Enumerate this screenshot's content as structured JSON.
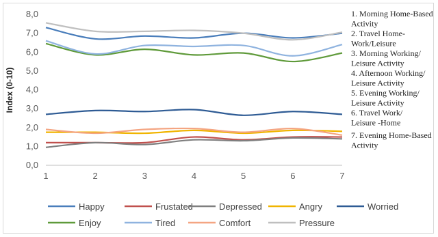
{
  "chart_data": {
    "type": "line",
    "ylabel": "Index (0-10)",
    "xlabel": "",
    "x": [
      1,
      2,
      3,
      4,
      5,
      6,
      7
    ],
    "ylim": [
      0,
      8
    ],
    "yticks": [
      "0,0",
      "1,0",
      "2,0",
      "3,0",
      "4,0",
      "5,0",
      "6,0",
      "7,0",
      "8,0"
    ],
    "xticks": [
      "1",
      "2",
      "3",
      "4",
      "5",
      "6",
      "7"
    ],
    "grid": false,
    "legend_position": "bottom",
    "series": [
      {
        "name": "Happy",
        "color": "#4a7ebb",
        "values": [
          7.3,
          6.7,
          6.85,
          6.75,
          7.0,
          6.75,
          7.0
        ]
      },
      {
        "name": "Frustated",
        "color": "#c0504d",
        "values": [
          1.2,
          1.2,
          1.2,
          1.5,
          1.35,
          1.5,
          1.5
        ]
      },
      {
        "name": "Depressed",
        "color": "#7f7f7f",
        "values": [
          0.95,
          1.2,
          1.1,
          1.35,
          1.3,
          1.45,
          1.4
        ]
      },
      {
        "name": "Angry",
        "color": "#f0b400",
        "values": [
          1.75,
          1.75,
          1.7,
          1.85,
          1.7,
          1.85,
          1.8
        ]
      },
      {
        "name": "Worried",
        "color": "#2e5b94",
        "values": [
          2.7,
          2.9,
          2.85,
          2.95,
          2.65,
          2.85,
          2.7
        ]
      },
      {
        "name": "Enjoy",
        "color": "#5f9a3a",
        "values": [
          6.45,
          5.85,
          6.15,
          5.85,
          5.95,
          5.5,
          5.95
        ]
      },
      {
        "name": "Tired",
        "color": "#8fb3df",
        "values": [
          6.6,
          5.9,
          6.35,
          6.3,
          6.35,
          5.8,
          6.4
        ]
      },
      {
        "name": "Comfort",
        "color": "#f4a582",
        "values": [
          1.9,
          1.7,
          1.9,
          1.95,
          1.75,
          1.95,
          1.6
        ]
      },
      {
        "name": "Pressure",
        "color": "#bfbfbf",
        "values": [
          7.55,
          7.1,
          7.1,
          7.15,
          7.0,
          6.65,
          7.05
        ]
      }
    ],
    "annotations": [
      [
        "1. Morning Home-Based",
        "Activity"
      ],
      [
        "2. Travel  Home-",
        "Work/Leisure"
      ],
      [
        "3. Morning Working/",
        "Leisure Activity"
      ],
      [
        "4. Afternoon Working/",
        "Leisure Activity"
      ],
      [
        "5. Evening Working/",
        "Leisure Activity"
      ],
      [
        "6. Travel Work/",
        "Leisure -Home"
      ],
      [
        "7. Evening Home-Based",
        "Activity"
      ]
    ]
  }
}
